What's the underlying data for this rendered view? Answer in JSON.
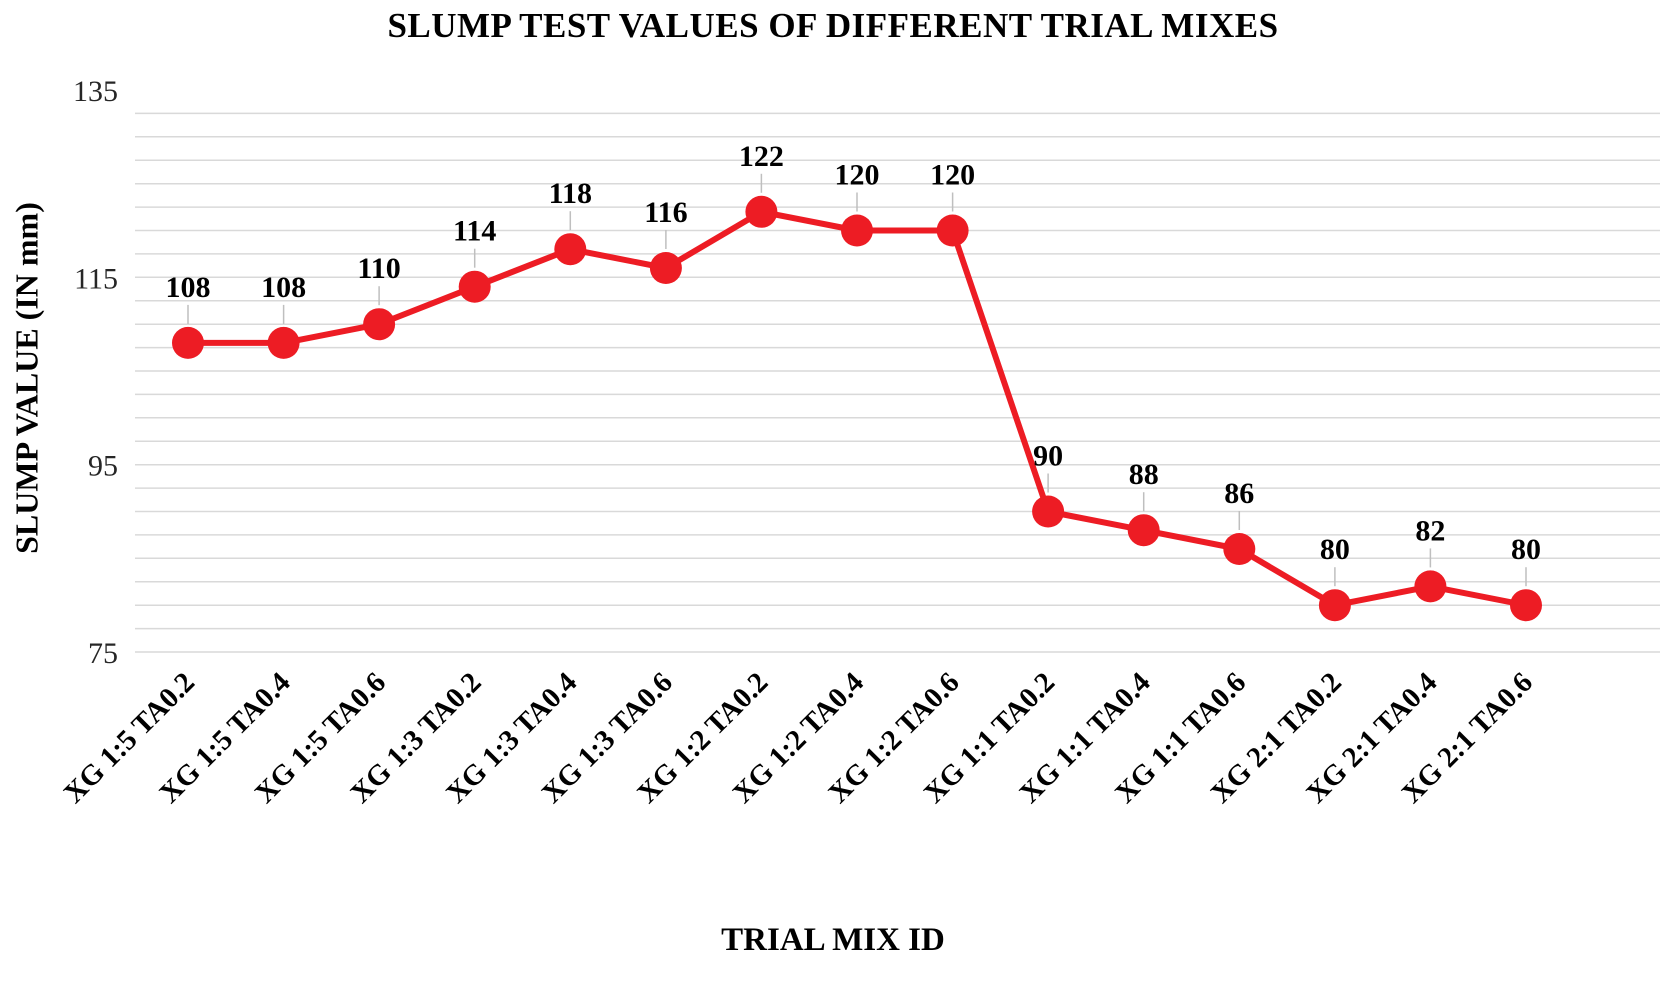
{
  "chart_data": {
    "type": "line",
    "title": "SLUMP TEST VALUES OF DIFFERENT TRIAL MIXES",
    "xlabel": "TRIAL MIX ID",
    "ylabel": "SLUMP VALUE (IN mm)",
    "categories": [
      "XG 1:5 TA0.2",
      "XG 1:5 TA0.4",
      "XG 1:5 TA0.6",
      "XG 1:3 TA0.2",
      "XG 1:3 TA0.4",
      "XG 1:3 TA0.6",
      "XG 1:2 TA0.2",
      "XG 1:2 TA0.4",
      "XG 1:2 TA0.6",
      "XG 1:1 TA0.2",
      "XG 1:1 TA0.4",
      "XG 1:1 TA0.6",
      "XG 2:1 TA0.2",
      "XG 2:1 TA0.4",
      "XG 2:1 TA0.6"
    ],
    "values": [
      108,
      108,
      110,
      114,
      118,
      116,
      122,
      120,
      120,
      90,
      88,
      86,
      80,
      82,
      80
    ],
    "ylim": [
      75,
      135
    ],
    "yticks": [
      135,
      115,
      95,
      75
    ],
    "minor_grid_step": 2.5,
    "grid": true,
    "legend": "none",
    "line_color": "#ED1C24",
    "marker_color": "#ED1C24",
    "grid_color": "#d9d9d9",
    "leader_color": "#bfbfbf"
  }
}
